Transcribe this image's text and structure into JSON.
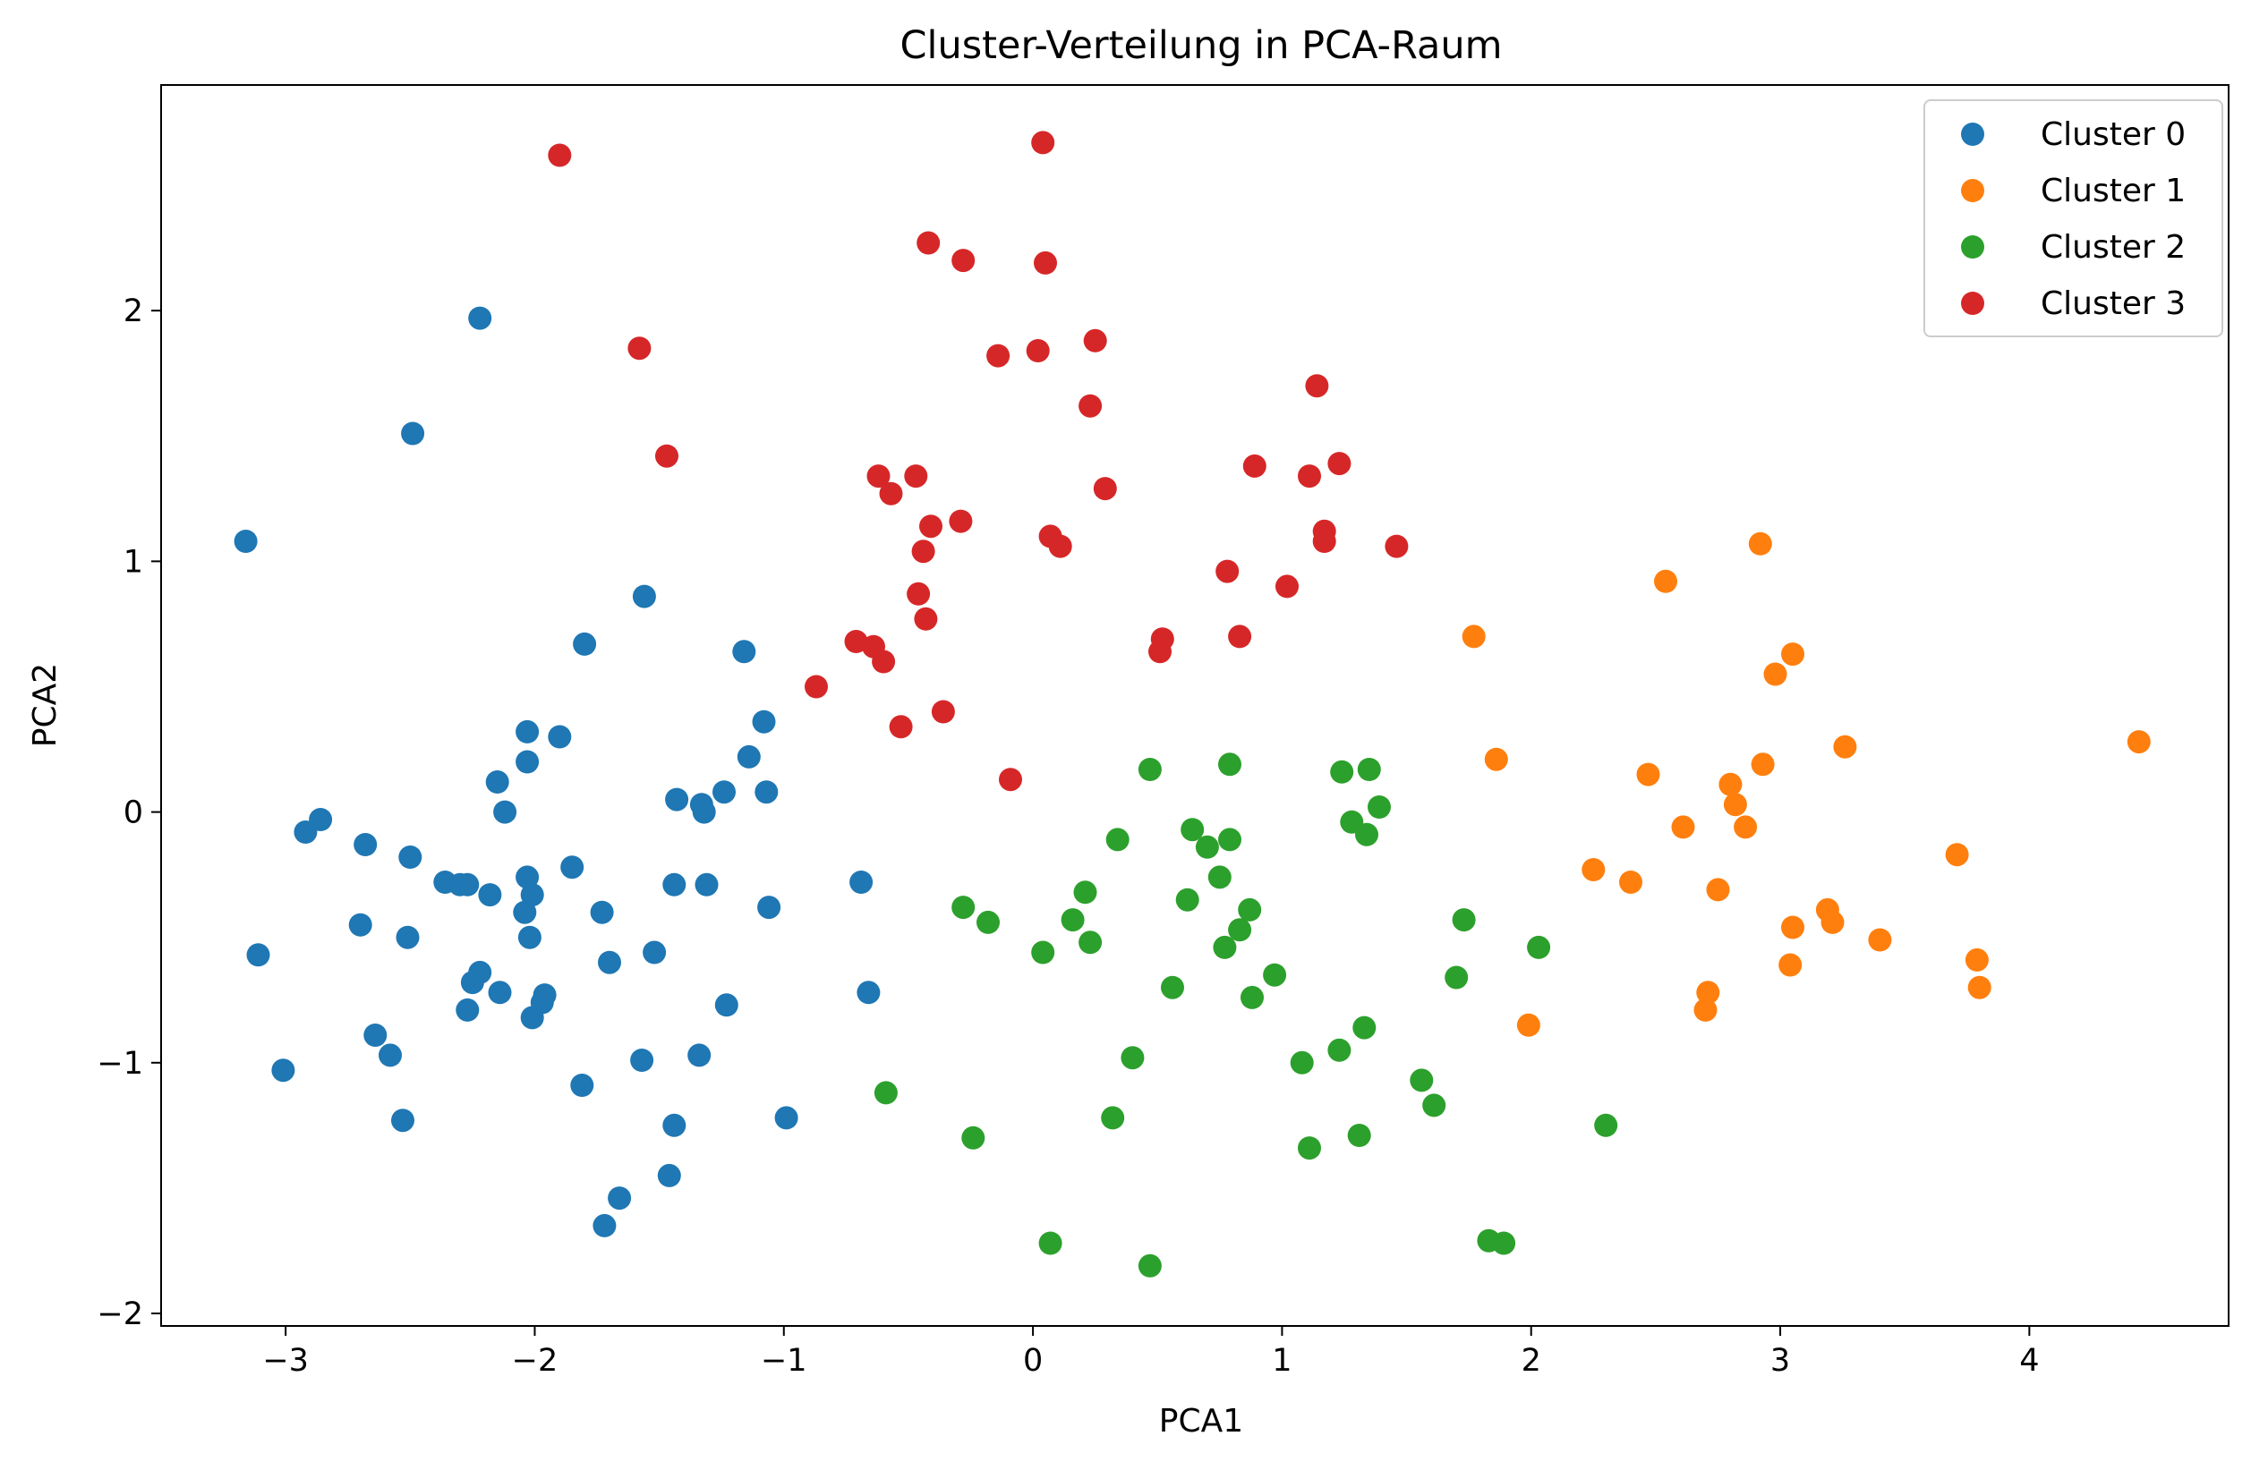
{
  "chart_data": {
    "type": "scatter",
    "title": "Cluster-Verteilung in PCA-Raum",
    "xlabel": "PCA1",
    "ylabel": "PCA2",
    "xlim": [
      -3.5,
      4.8
    ],
    "ylim": [
      -2.05,
      2.9
    ],
    "xticks": [
      -3,
      -2,
      -1,
      0,
      1,
      2,
      3,
      4
    ],
    "xtick_labels": [
      "−3",
      "−2",
      "−1",
      "0",
      "1",
      "2",
      "3",
      "4"
    ],
    "yticks": [
      -2,
      -1,
      0,
      1,
      2
    ],
    "ytick_labels": [
      "−2",
      "−1",
      "0",
      "1",
      "2"
    ],
    "grid": false,
    "legend_position": "top-right",
    "series": [
      {
        "name": "Cluster 0",
        "color": "#1f77b4",
        "points": [
          [
            -2.22,
            1.97
          ],
          [
            -2.49,
            1.51
          ],
          [
            -3.16,
            1.08
          ],
          [
            -1.56,
            0.86
          ],
          [
            -1.8,
            0.67
          ],
          [
            -1.16,
            0.64
          ],
          [
            -1.08,
            0.36
          ],
          [
            -2.03,
            0.32
          ],
          [
            -1.9,
            0.3
          ],
          [
            -1.14,
            0.22
          ],
          [
            -2.03,
            0.2
          ],
          [
            -2.15,
            0.12
          ],
          [
            -1.43,
            0.05
          ],
          [
            -1.24,
            0.08
          ],
          [
            -1.07,
            0.08
          ],
          [
            -1.33,
            0.03
          ],
          [
            -2.12,
            0.0
          ],
          [
            -1.32,
            0.0
          ],
          [
            -2.86,
            -0.03
          ],
          [
            -2.92,
            -0.08
          ],
          [
            -2.68,
            -0.13
          ],
          [
            -2.5,
            -0.18
          ],
          [
            -1.85,
            -0.22
          ],
          [
            -2.03,
            -0.26
          ],
          [
            -2.36,
            -0.28
          ],
          [
            -2.3,
            -0.29
          ],
          [
            -2.27,
            -0.29
          ],
          [
            -1.44,
            -0.29
          ],
          [
            -1.31,
            -0.29
          ],
          [
            -0.69,
            -0.28
          ],
          [
            -2.18,
            -0.33
          ],
          [
            -2.01,
            -0.33
          ],
          [
            -2.04,
            -0.4
          ],
          [
            -1.73,
            -0.4
          ],
          [
            -1.06,
            -0.38
          ],
          [
            -2.7,
            -0.45
          ],
          [
            -2.51,
            -0.5
          ],
          [
            -2.02,
            -0.5
          ],
          [
            -1.52,
            -0.56
          ],
          [
            -3.11,
            -0.57
          ],
          [
            -1.7,
            -0.6
          ],
          [
            -2.22,
            -0.64
          ],
          [
            -2.25,
            -0.68
          ],
          [
            -2.14,
            -0.72
          ],
          [
            -1.96,
            -0.73
          ],
          [
            -0.66,
            -0.72
          ],
          [
            -1.97,
            -0.76
          ],
          [
            -1.23,
            -0.77
          ],
          [
            -2.27,
            -0.79
          ],
          [
            -2.01,
            -0.82
          ],
          [
            -2.64,
            -0.89
          ],
          [
            -2.58,
            -0.97
          ],
          [
            -1.34,
            -0.97
          ],
          [
            -1.57,
            -0.99
          ],
          [
            -3.01,
            -1.03
          ],
          [
            -1.81,
            -1.09
          ],
          [
            -2.53,
            -1.23
          ],
          [
            -0.99,
            -1.22
          ],
          [
            -1.44,
            -1.25
          ],
          [
            -1.46,
            -1.45
          ],
          [
            -1.66,
            -1.54
          ],
          [
            -1.72,
            -1.65
          ]
        ]
      },
      {
        "name": "Cluster 1",
        "color": "#ff7f0e",
        "points": [
          [
            2.92,
            1.07
          ],
          [
            2.54,
            0.92
          ],
          [
            1.77,
            0.7
          ],
          [
            3.05,
            0.63
          ],
          [
            2.98,
            0.55
          ],
          [
            4.44,
            0.28
          ],
          [
            3.26,
            0.26
          ],
          [
            1.86,
            0.21
          ],
          [
            2.93,
            0.19
          ],
          [
            2.47,
            0.15
          ],
          [
            2.8,
            0.11
          ],
          [
            2.82,
            0.03
          ],
          [
            2.61,
            -0.06
          ],
          [
            2.86,
            -0.06
          ],
          [
            3.71,
            -0.17
          ],
          [
            2.25,
            -0.23
          ],
          [
            2.4,
            -0.28
          ],
          [
            2.75,
            -0.31
          ],
          [
            3.19,
            -0.39
          ],
          [
            3.05,
            -0.46
          ],
          [
            3.21,
            -0.44
          ],
          [
            3.4,
            -0.51
          ],
          [
            3.79,
            -0.59
          ],
          [
            3.04,
            -0.61
          ],
          [
            2.71,
            -0.72
          ],
          [
            3.8,
            -0.7
          ],
          [
            2.7,
            -0.79
          ],
          [
            1.99,
            -0.85
          ]
        ]
      },
      {
        "name": "Cluster 2",
        "color": "#2ca02c",
        "points": [
          [
            0.47,
            0.17
          ],
          [
            0.79,
            0.19
          ],
          [
            1.35,
            0.17
          ],
          [
            1.24,
            0.16
          ],
          [
            1.39,
            0.02
          ],
          [
            1.28,
            -0.04
          ],
          [
            0.64,
            -0.07
          ],
          [
            1.34,
            -0.09
          ],
          [
            0.34,
            -0.11
          ],
          [
            0.79,
            -0.11
          ],
          [
            0.7,
            -0.14
          ],
          [
            0.75,
            -0.26
          ],
          [
            0.21,
            -0.32
          ],
          [
            0.62,
            -0.35
          ],
          [
            -0.28,
            -0.38
          ],
          [
            0.87,
            -0.39
          ],
          [
            0.16,
            -0.43
          ],
          [
            -0.18,
            -0.44
          ],
          [
            1.73,
            -0.43
          ],
          [
            0.83,
            -0.47
          ],
          [
            0.23,
            -0.52
          ],
          [
            0.77,
            -0.54
          ],
          [
            2.03,
            -0.54
          ],
          [
            0.04,
            -0.56
          ],
          [
            0.97,
            -0.65
          ],
          [
            1.7,
            -0.66
          ],
          [
            0.56,
            -0.7
          ],
          [
            0.88,
            -0.74
          ],
          [
            1.33,
            -0.86
          ],
          [
            1.23,
            -0.95
          ],
          [
            0.4,
            -0.98
          ],
          [
            1.08,
            -1.0
          ],
          [
            1.56,
            -1.07
          ],
          [
            -0.59,
            -1.12
          ],
          [
            1.61,
            -1.17
          ],
          [
            0.32,
            -1.22
          ],
          [
            2.3,
            -1.25
          ],
          [
            -0.24,
            -1.3
          ],
          [
            1.31,
            -1.29
          ],
          [
            1.11,
            -1.34
          ],
          [
            1.83,
            -1.71
          ],
          [
            1.89,
            -1.72
          ],
          [
            0.07,
            -1.72
          ],
          [
            0.47,
            -1.81
          ]
        ]
      },
      {
        "name": "Cluster 3",
        "color": "#d62728",
        "points": [
          [
            0.04,
            2.67
          ],
          [
            -1.9,
            2.62
          ],
          [
            -0.42,
            2.27
          ],
          [
            -0.28,
            2.2
          ],
          [
            0.05,
            2.19
          ],
          [
            0.25,
            1.88
          ],
          [
            -1.58,
            1.85
          ],
          [
            -0.14,
            1.82
          ],
          [
            0.02,
            1.84
          ],
          [
            1.14,
            1.7
          ],
          [
            0.23,
            1.62
          ],
          [
            -1.47,
            1.42
          ],
          [
            0.89,
            1.38
          ],
          [
            1.23,
            1.39
          ],
          [
            -0.62,
            1.34
          ],
          [
            -0.47,
            1.34
          ],
          [
            1.11,
            1.34
          ],
          [
            0.29,
            1.29
          ],
          [
            -0.57,
            1.27
          ],
          [
            -0.29,
            1.16
          ],
          [
            -0.41,
            1.14
          ],
          [
            1.17,
            1.12
          ],
          [
            0.07,
            1.1
          ],
          [
            0.11,
            1.06
          ],
          [
            1.17,
            1.08
          ],
          [
            1.46,
            1.06
          ],
          [
            -0.44,
            1.04
          ],
          [
            0.78,
            0.96
          ],
          [
            1.02,
            0.9
          ],
          [
            -0.46,
            0.87
          ],
          [
            -0.43,
            0.77
          ],
          [
            0.52,
            0.69
          ],
          [
            0.83,
            0.7
          ],
          [
            -0.71,
            0.68
          ],
          [
            -0.64,
            0.66
          ],
          [
            0.51,
            0.64
          ],
          [
            -0.6,
            0.6
          ],
          [
            -0.87,
            0.5
          ],
          [
            -0.36,
            0.4
          ],
          [
            -0.53,
            0.34
          ],
          [
            -0.09,
            0.13
          ]
        ]
      }
    ]
  }
}
